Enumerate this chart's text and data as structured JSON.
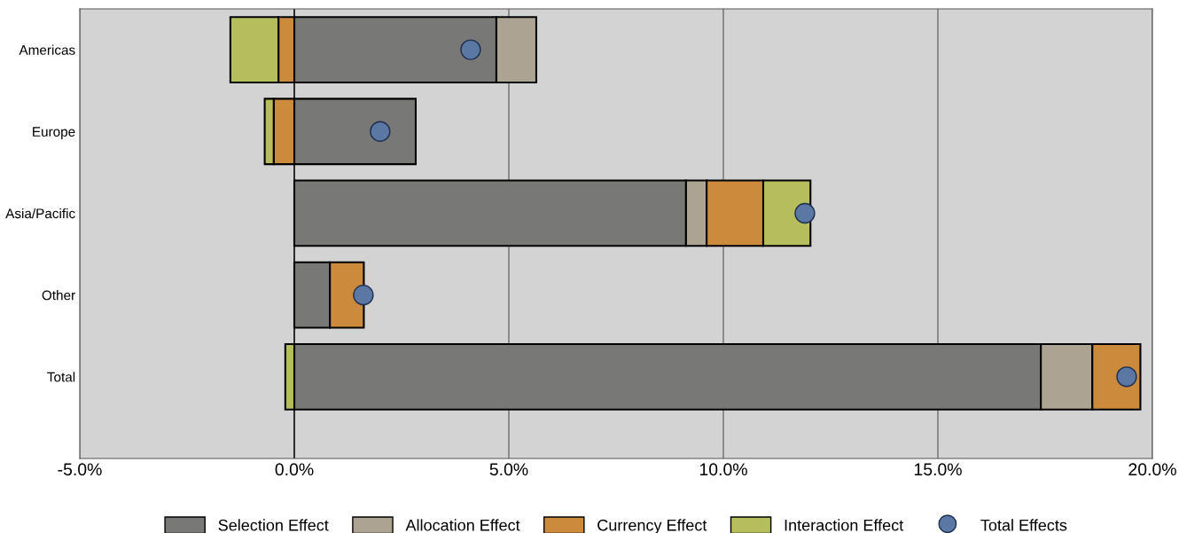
{
  "chart_data": {
    "type": "bar",
    "orientation": "horizontal",
    "stacked": true,
    "categories": [
      "Americas",
      "Europe",
      "Asia/Pacific",
      "Other",
      "Total"
    ],
    "series": [
      {
        "name": "Selection Effect",
        "color": "#787876",
        "values": [
          4.71,
          2.83,
          9.13,
          0.83,
          17.4
        ]
      },
      {
        "name": "Allocation Effect",
        "color": "#ada393",
        "values": [
          0.93,
          null,
          0.48,
          null,
          1.2
        ]
      },
      {
        "name": "Currency Effect",
        "color": "#cc8a3c",
        "values": [
          -0.37,
          -0.48,
          1.32,
          0.79,
          1.12
        ]
      },
      {
        "name": "Interaction Effect",
        "color": "#b5bd5c",
        "values": [
          -1.12,
          -0.21,
          1.1,
          null,
          -0.21
        ]
      },
      {
        "name": "Total Effects",
        "color": "#5b77a3",
        "type": "scatter",
        "marker": "circle",
        "values": [
          4.11,
          2.0,
          11.9,
          1.61,
          19.4
        ]
      }
    ],
    "xlim": [
      -5,
      20
    ],
    "xticks": [
      {
        "value": -5,
        "label": "-5.0%"
      },
      {
        "value": 0,
        "label": "0.0%"
      },
      {
        "value": 5,
        "label": "5.0%"
      },
      {
        "value": 10,
        "label": "10.0%"
      },
      {
        "value": 15,
        "label": "15.0%"
      },
      {
        "value": 20,
        "label": "20.0%"
      }
    ],
    "ref_lines": [
      {
        "axis": "x",
        "value": 0,
        "color": "#000000"
      }
    ],
    "grid": "x",
    "legend": "bottom"
  }
}
